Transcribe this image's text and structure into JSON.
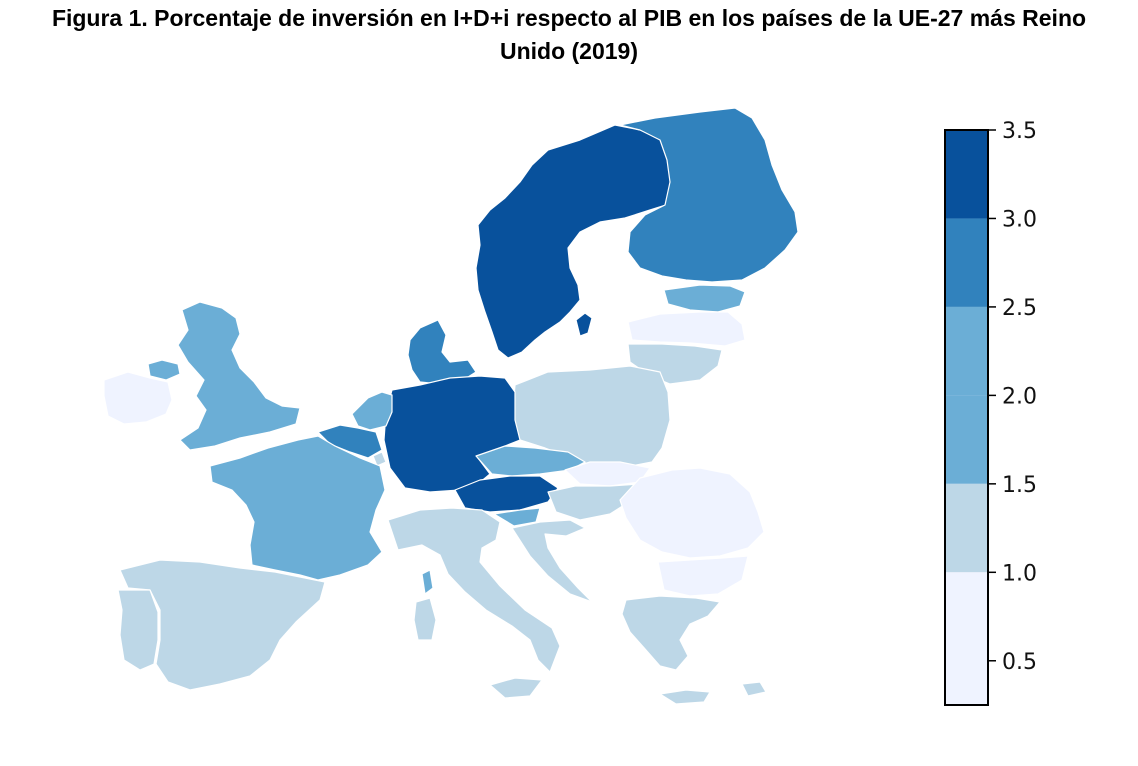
{
  "title": {
    "line1": "Figura 1. Porcentaje de inversión en I+D+i respecto al PIB en los países de la UE-27 más Reino",
    "line2": "Unido (2019)"
  },
  "legend": {
    "ticks": [
      "3.5",
      "3.0",
      "2.5",
      "2.0",
      "1.5",
      "1.0",
      "0.5"
    ],
    "bins": [
      {
        "range": [
          3.0,
          3.5
        ],
        "color": "#08519c"
      },
      {
        "range": [
          2.5,
          3.0
        ],
        "color": "#3182bd"
      },
      {
        "range": [
          2.0,
          2.5
        ],
        "color": "#6baed6"
      },
      {
        "range": [
          1.5,
          2.0
        ],
        "color": "#6baed6"
      },
      {
        "range": [
          1.0,
          1.5
        ],
        "color": "#bdd7e7"
      },
      {
        "range": [
          0.25,
          1.0
        ],
        "color": "#eff3ff"
      }
    ]
  },
  "map": {
    "countries": [
      {
        "name": "sweden",
        "color": "#08519c"
      },
      {
        "name": "finland",
        "color": "#3182bd"
      },
      {
        "name": "estonia",
        "color": "#6baed6"
      },
      {
        "name": "latvia",
        "color": "#eff3ff"
      },
      {
        "name": "lithuania",
        "color": "#bdd7e7"
      },
      {
        "name": "denmark",
        "color": "#3182bd"
      },
      {
        "name": "germany",
        "color": "#08519c"
      },
      {
        "name": "poland",
        "color": "#bdd7e7"
      },
      {
        "name": "netherlands",
        "color": "#6baed6"
      },
      {
        "name": "belgium",
        "color": "#3182bd"
      },
      {
        "name": "luxembourg",
        "color": "#bdd7e7"
      },
      {
        "name": "france",
        "color": "#6baed6"
      },
      {
        "name": "united-kingdom",
        "color": "#6baed6"
      },
      {
        "name": "ireland",
        "color": "#eff3ff"
      },
      {
        "name": "czechia",
        "color": "#6baed6"
      },
      {
        "name": "austria",
        "color": "#08519c"
      },
      {
        "name": "slovakia",
        "color": "#eff3ff"
      },
      {
        "name": "hungary",
        "color": "#bdd7e7"
      },
      {
        "name": "slovenia",
        "color": "#6baed6"
      },
      {
        "name": "croatia",
        "color": "#bdd7e7"
      },
      {
        "name": "italy",
        "color": "#bdd7e7"
      },
      {
        "name": "spain",
        "color": "#bdd7e7"
      },
      {
        "name": "portugal",
        "color": "#bdd7e7"
      },
      {
        "name": "romania",
        "color": "#eff3ff"
      },
      {
        "name": "bulgaria",
        "color": "#eff3ff"
      },
      {
        "name": "greece",
        "color": "#bdd7e7"
      },
      {
        "name": "corsica",
        "color": "#6baed6"
      },
      {
        "name": "sardinia",
        "color": "#bdd7e7"
      },
      {
        "name": "gotland",
        "color": "#08519c"
      },
      {
        "name": "cyprus",
        "color": "#bdd7e7"
      }
    ]
  }
}
